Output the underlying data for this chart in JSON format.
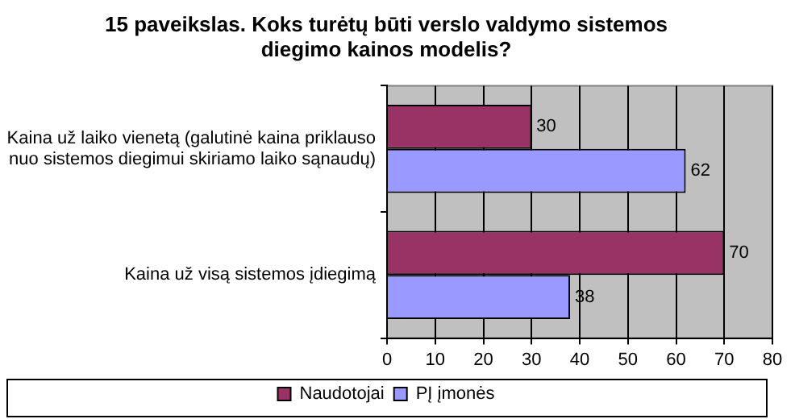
{
  "chart_data": {
    "type": "bar",
    "orientation": "horizontal",
    "title": "15 paveikslas. Koks turėtų būti verslo valdymo sistemos diegimo kainos modelis?",
    "categories": [
      "Kaina už laiko vienetą (galutinė kaina priklauso nuo sistemos diegimui skiriamo laiko sąnaudų)",
      "Kaina už visą sistemos įdiegimą"
    ],
    "series": [
      {
        "name": "PĮ įmonės",
        "color": "#9999ff",
        "values": [
          62,
          38
        ]
      },
      {
        "name": "Naudotojai",
        "color": "#993366",
        "values": [
          30,
          70
        ]
      }
    ],
    "xlim": [
      0,
      80
    ],
    "xticks": [
      0,
      10,
      20,
      30,
      40,
      50,
      60,
      70,
      80
    ],
    "grid": "x",
    "legend": "bottom",
    "data_labels": true
  }
}
